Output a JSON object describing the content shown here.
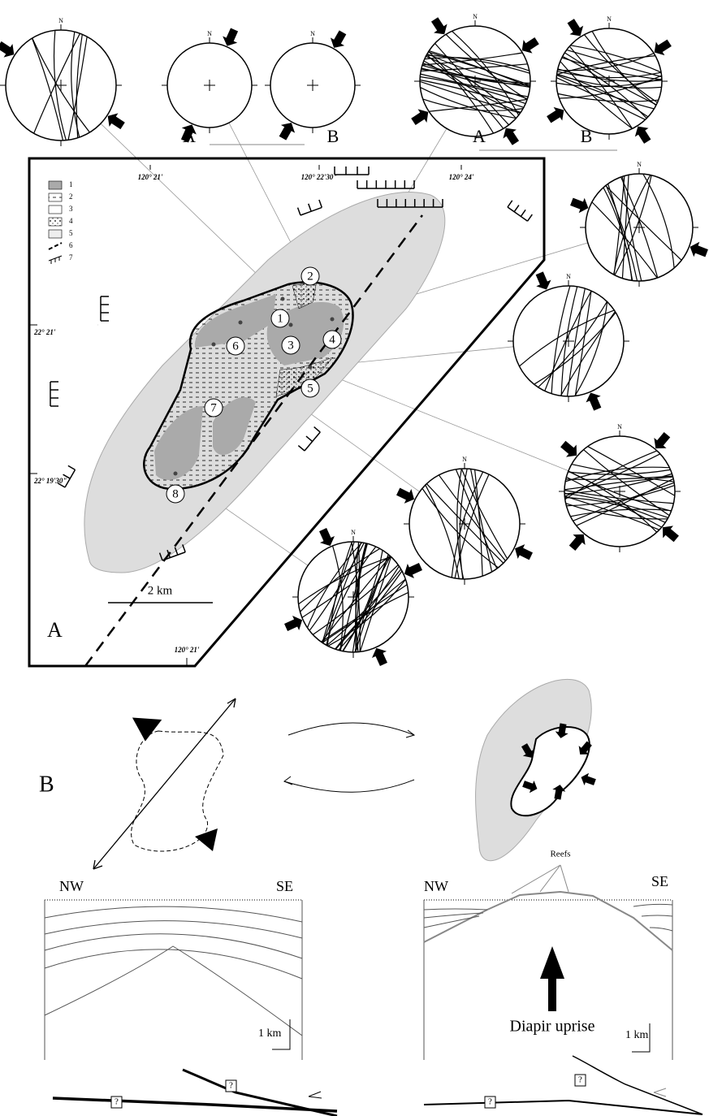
{
  "north_label": "N",
  "top_stereonets": {
    "set_1": {
      "labels": [
        "A",
        "B"
      ]
    },
    "set_2": {
      "labels": [
        "A",
        "B"
      ]
    }
  },
  "map": {
    "panel_label": "A",
    "longitudes": [
      "120° 21'",
      "120° 22'30\"",
      "120° 24'"
    ],
    "latitudes": [
      "22° 21'",
      "22° 19'30\""
    ],
    "bottom_longitude": "120° 21'",
    "legend": [
      "1",
      "2",
      "3",
      "4",
      "5",
      "6",
      "7"
    ],
    "sites": [
      "1",
      "2",
      "3",
      "4",
      "5",
      "6",
      "7",
      "8"
    ],
    "scale": "2 km"
  },
  "panel_b": {
    "label": "B",
    "reefs": "Reefs",
    "diapir": "Diapir uprise",
    "left_section": {
      "nw": "NW",
      "se": "SE",
      "scale": "1 km",
      "unknown": [
        "?",
        "?"
      ]
    },
    "right_section": {
      "nw": "NW",
      "se": "SE",
      "scale": "1 km",
      "unknown": [
        "?",
        "?"
      ]
    }
  }
}
